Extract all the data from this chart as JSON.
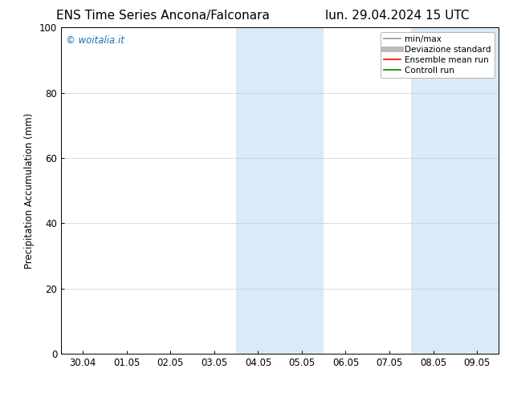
{
  "title_left": "ENS Time Series Ancona/Falconara",
  "title_right": "lun. 29.04.2024 15 UTC",
  "ylabel": "Precipitation Accumulation (mm)",
  "ylim": [
    0,
    100
  ],
  "yticks": [
    0,
    20,
    40,
    60,
    80,
    100
  ],
  "xtick_labels": [
    "30.04",
    "01.05",
    "02.05",
    "03.05",
    "04.05",
    "05.05",
    "06.05",
    "07.05",
    "08.05",
    "09.05"
  ],
  "xtick_positions": [
    0,
    1,
    2,
    3,
    4,
    5,
    6,
    7,
    8,
    9
  ],
  "xlim": [
    -0.5,
    9.5
  ],
  "shaded_regions": [
    {
      "x_start": 3.5,
      "x_end": 4.5,
      "color": "#daeaf6"
    },
    {
      "x_start": 4.5,
      "x_end": 5.5,
      "color": "#daeaf6"
    },
    {
      "x_start": 7.5,
      "x_end": 8.5,
      "color": "#daeaf6"
    },
    {
      "x_start": 8.5,
      "x_end": 9.5,
      "color": "#daeaf6"
    }
  ],
  "copyright_text": "© woitalia.it",
  "copyright_color": "#1a6bb5",
  "background_color": "#ffffff",
  "legend_entries": [
    {
      "label": "min/max",
      "color": "#999999",
      "lw": 1.2,
      "ls": "-"
    },
    {
      "label": "Deviazione standard",
      "color": "#bbbbbb",
      "lw": 5,
      "ls": "-"
    },
    {
      "label": "Ensemble mean run",
      "color": "#ff0000",
      "lw": 1.2,
      "ls": "-"
    },
    {
      "label": "Controll run",
      "color": "#008000",
      "lw": 1.2,
      "ls": "-"
    }
  ],
  "title_fontsize": 11,
  "tick_fontsize": 8.5,
  "ylabel_fontsize": 8.5,
  "legend_fontsize": 7.5,
  "copyright_fontsize": 8.5
}
